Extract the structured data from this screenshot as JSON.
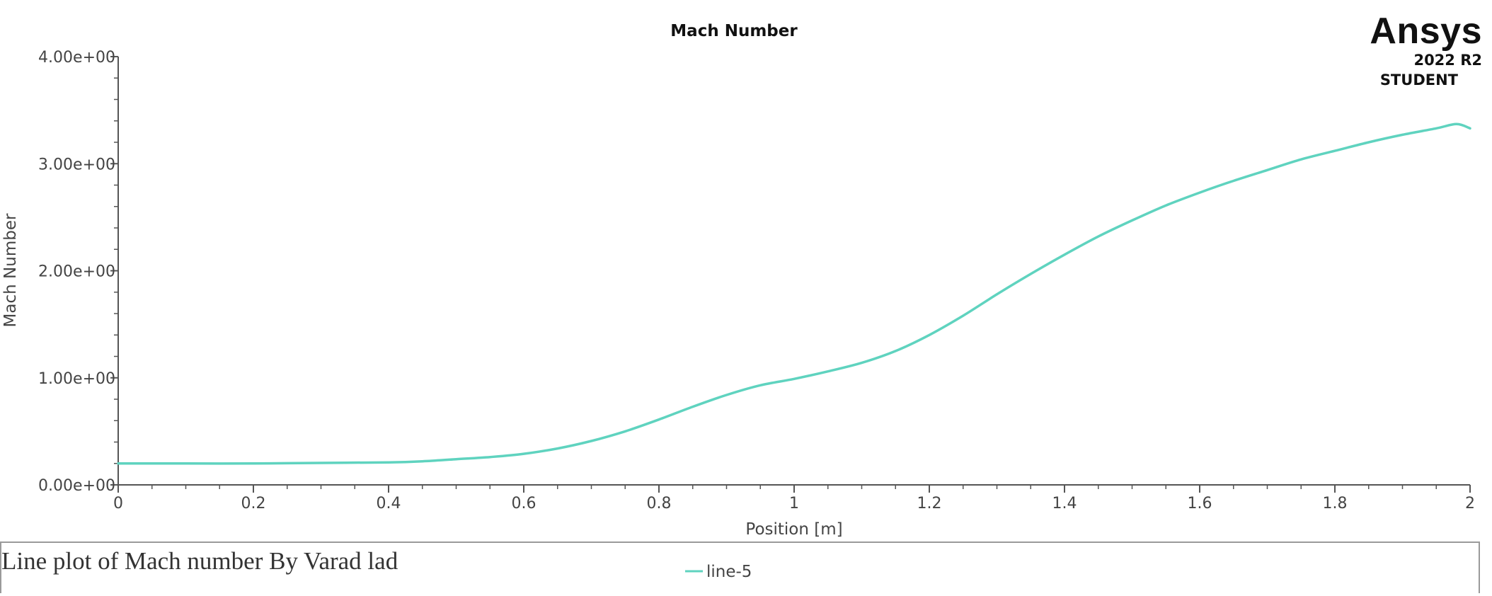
{
  "logo": {
    "wordmark": "Ansys",
    "version": "2022 R2",
    "edition": "STUDENT"
  },
  "caption": "Line plot of Mach number By Varad lad",
  "colors": {
    "series": "#5fd3bf",
    "axis": "#555555",
    "text": "#444444",
    "title": "#111111"
  },
  "chart_data": {
    "type": "line",
    "title": "Mach Number",
    "xlabel": "Position [m]",
    "ylabel": "Mach Number",
    "xlim": [
      0,
      2
    ],
    "ylim": [
      0,
      4
    ],
    "x_ticks": [
      "0",
      "0.2",
      "0.4",
      "0.6",
      "0.8",
      "1",
      "1.2",
      "1.4",
      "1.6",
      "1.8",
      "2"
    ],
    "y_ticks": [
      "0.00e+00",
      "1.00e+00",
      "2.00e+00",
      "3.00e+00",
      "4.00e+00"
    ],
    "grid": false,
    "legend": "bottom-center",
    "series": [
      {
        "name": "line-5",
        "x": [
          0,
          0.1,
          0.2,
          0.3,
          0.4,
          0.45,
          0.5,
          0.55,
          0.6,
          0.65,
          0.7,
          0.75,
          0.8,
          0.85,
          0.9,
          0.95,
          1.0,
          1.05,
          1.1,
          1.15,
          1.2,
          1.25,
          1.3,
          1.35,
          1.4,
          1.45,
          1.5,
          1.55,
          1.6,
          1.65,
          1.7,
          1.75,
          1.8,
          1.85,
          1.9,
          1.95,
          1.98,
          2.0
        ],
        "y": [
          0.2,
          0.2,
          0.2,
          0.205,
          0.21,
          0.22,
          0.24,
          0.26,
          0.29,
          0.34,
          0.41,
          0.5,
          0.61,
          0.73,
          0.84,
          0.93,
          0.99,
          1.06,
          1.14,
          1.25,
          1.4,
          1.58,
          1.78,
          1.97,
          2.15,
          2.32,
          2.47,
          2.61,
          2.73,
          2.84,
          2.94,
          3.04,
          3.12,
          3.2,
          3.27,
          3.33,
          3.37,
          3.33
        ]
      }
    ]
  }
}
